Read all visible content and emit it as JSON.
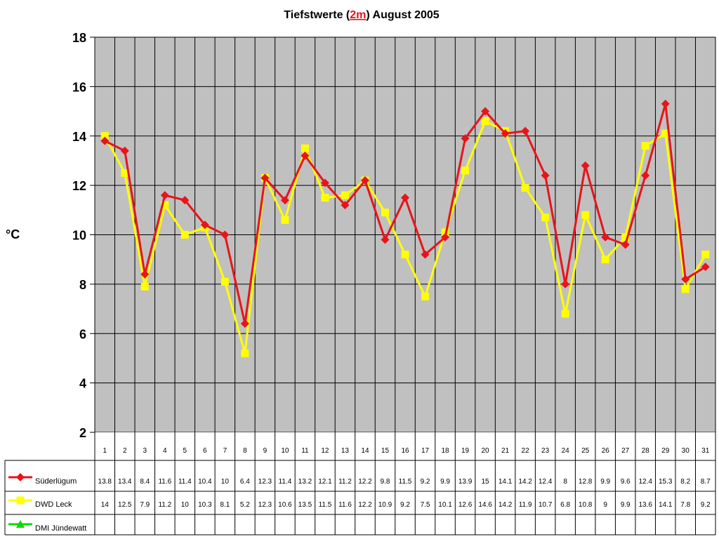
{
  "chart_data": {
    "type": "line",
    "title_prefix": "Tiefstwerte (",
    "title_highlight": "2m",
    "title_suffix": ") August 2005",
    "ylabel": "°C",
    "ylim": [
      2,
      18
    ],
    "yticks": [
      2,
      4,
      6,
      8,
      10,
      12,
      14,
      16,
      18
    ],
    "grid": true,
    "categories": [
      "1",
      "2",
      "3",
      "4",
      "5",
      "6",
      "7",
      "8",
      "9",
      "10",
      "11",
      "12",
      "13",
      "14",
      "15",
      "16",
      "17",
      "18",
      "19",
      "20",
      "21",
      "22",
      "23",
      "24",
      "25",
      "26",
      "27",
      "28",
      "29",
      "30",
      "31"
    ],
    "series": [
      {
        "name": "Süderlügum",
        "color": "#e8141a",
        "marker": "diamond",
        "values": [
          13.8,
          13.4,
          8.4,
          11.6,
          11.4,
          10.4,
          10,
          6.4,
          12.3,
          11.4,
          13.2,
          12.1,
          11.2,
          12.2,
          9.8,
          11.5,
          9.2,
          9.9,
          13.9,
          15,
          14.1,
          14.2,
          12.4,
          8,
          12.8,
          9.9,
          9.6,
          12.4,
          15.3,
          8.2,
          8.7
        ]
      },
      {
        "name": "DWD Leck",
        "color": "#ffff00",
        "marker": "square",
        "values": [
          14,
          12.5,
          7.9,
          11.2,
          10,
          10.3,
          8.1,
          5.2,
          12.3,
          10.6,
          13.5,
          11.5,
          11.6,
          12.2,
          10.9,
          9.2,
          7.5,
          10.1,
          12.6,
          14.6,
          14.2,
          11.9,
          10.7,
          6.8,
          10.8,
          9,
          9.9,
          13.6,
          14.1,
          7.8,
          9.2
        ]
      },
      {
        "name": "DMI Jündewatt",
        "color": "#00dd00",
        "marker": "triangle",
        "values": [
          null,
          null,
          null,
          null,
          null,
          null,
          null,
          null,
          null,
          null,
          null,
          null,
          null,
          null,
          null,
          null,
          null,
          null,
          null,
          null,
          null,
          null,
          null,
          null,
          null,
          null,
          null,
          null,
          null,
          null,
          null
        ]
      }
    ],
    "colors": {
      "plot_background": "#c0c0c0",
      "title_highlight": "#e8141a"
    }
  }
}
